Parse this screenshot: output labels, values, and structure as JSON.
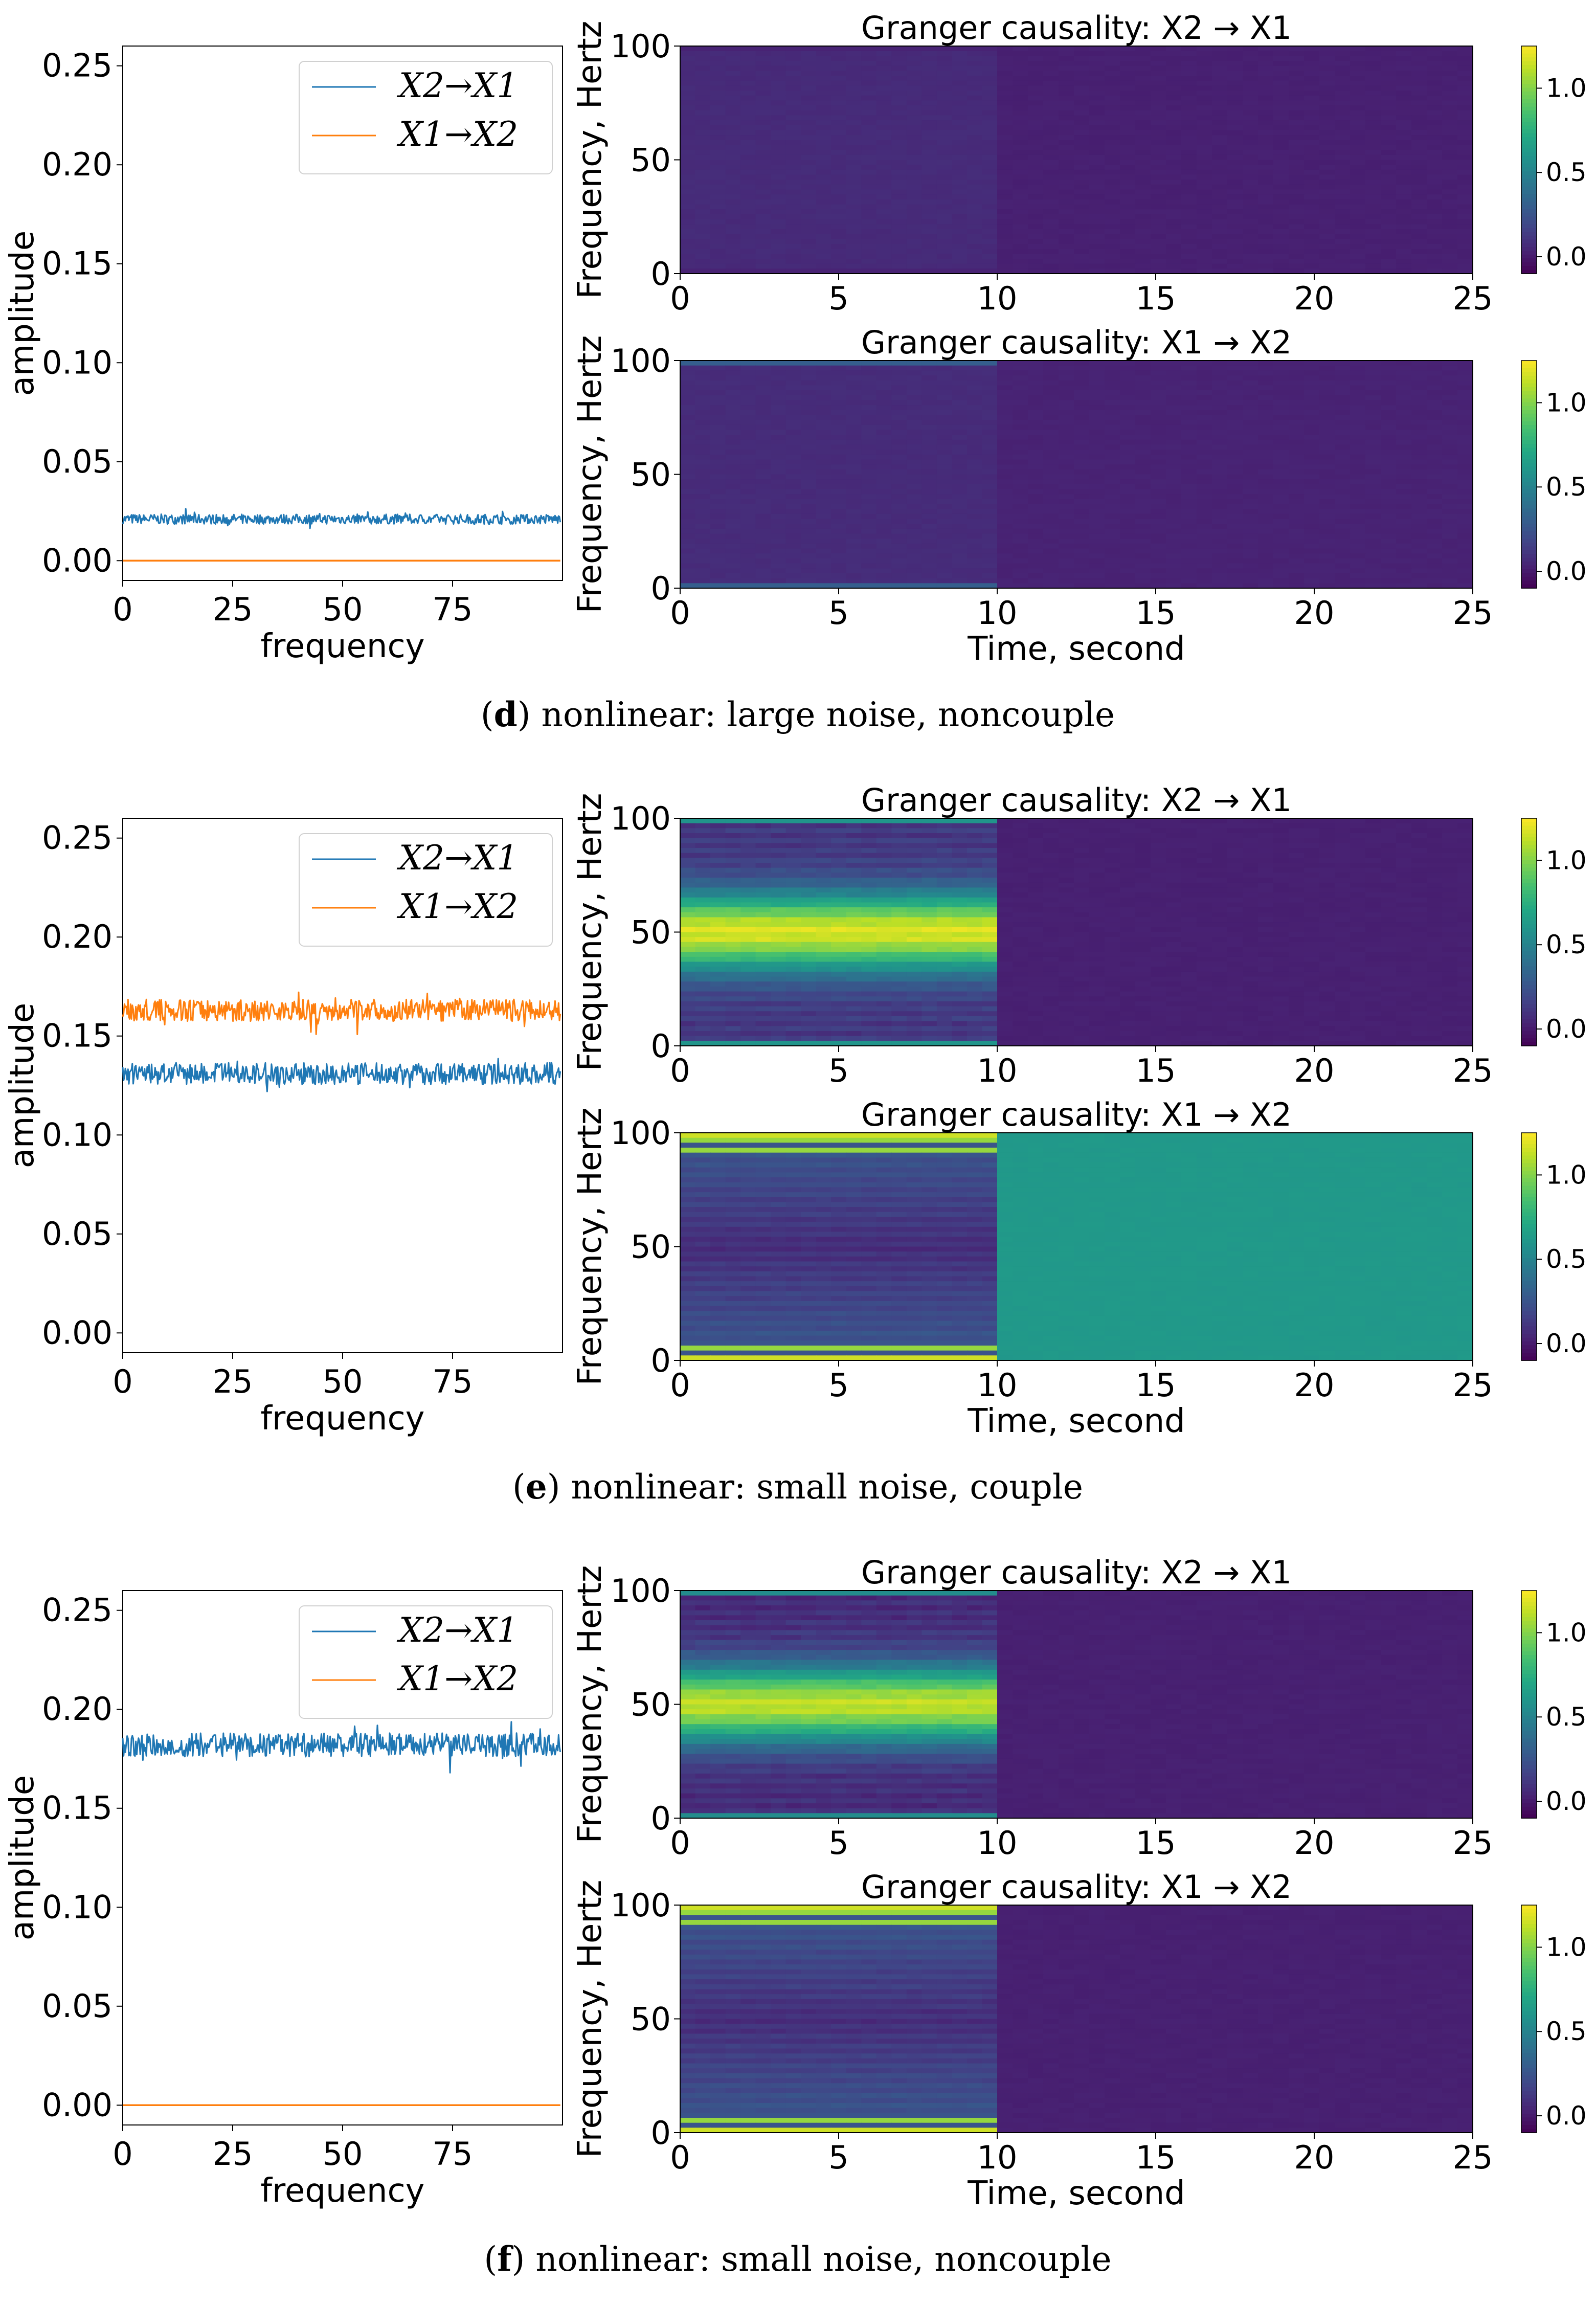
{
  "chart_data": [
    {
      "panel": "d",
      "caption": {
        "label": "d",
        "text": "nonlinear: large noise, noncouple"
      },
      "line_chart": {
        "type": "line",
        "xlabel": "frequency",
        "ylabel": "amplitude",
        "xlim": [
          0,
          100
        ],
        "ylim": [
          -0.01,
          0.26
        ],
        "xticks": [
          "0",
          "25",
          "50",
          "75"
        ],
        "yticks": [
          "0.00",
          "0.05",
          "0.10",
          "0.15",
          "0.20",
          "0.25"
        ],
        "series": [
          {
            "name": "X2→X1",
            "color": "#1f77b4",
            "mean": 0.021,
            "noise": 0.0025
          },
          {
            "name": "X1→X2",
            "color": "#ff7f0e",
            "mean": 0.0,
            "noise": 0.0
          }
        ],
        "legend": "upper-right"
      },
      "heatmaps": [
        {
          "type": "heatmap",
          "title": "Granger causality: X2 → X1",
          "xlabel": "",
          "ylabel": "Frequency, Hertz",
          "xlim": [
            0,
            25
          ],
          "ylim": [
            0,
            100
          ],
          "xticks": [
            "0",
            "5",
            "10",
            "15",
            "20",
            "25"
          ],
          "yticks": [
            "0",
            "50",
            "100"
          ],
          "colorbar": {
            "min": -0.1,
            "max": 1.25,
            "ticks": [
              "0.0",
              "0.5",
              "1.0"
            ]
          },
          "regions": [
            {
              "t": [
                0,
                10
              ],
              "pattern": "hump",
              "edge": 0.03,
              "peak": 0.07,
              "center": 0.06
            },
            {
              "t": [
                10,
                25
              ],
              "pattern": "flat",
              "value": 0.02
            }
          ]
        },
        {
          "type": "heatmap",
          "title": "Granger causality: X1 → X2",
          "xlabel": "Time, second",
          "ylabel": "Frequency, Hertz",
          "xlim": [
            0,
            25
          ],
          "ylim": [
            0,
            100
          ],
          "xticks": [
            "0",
            "5",
            "10",
            "15",
            "20",
            "25"
          ],
          "yticks": [
            "0",
            "50",
            "100"
          ],
          "colorbar": {
            "min": -0.1,
            "max": 1.25,
            "ticks": [
              "0.0",
              "0.5",
              "1.0"
            ]
          },
          "regions": [
            {
              "t": [
                0,
                10
              ],
              "pattern": "hump",
              "edge": 0.3,
              "peak": 0.06,
              "center": 0.07
            },
            {
              "t": [
                10,
                25
              ],
              "pattern": "flat",
              "value": 0.03
            }
          ]
        }
      ]
    },
    {
      "panel": "e",
      "caption": {
        "label": "e",
        "text": "nonlinear: small noise, couple"
      },
      "line_chart": {
        "type": "line",
        "xlabel": "frequency",
        "ylabel": "amplitude",
        "xlim": [
          0,
          100
        ],
        "ylim": [
          -0.01,
          0.26
        ],
        "xticks": [
          "0",
          "25",
          "50",
          "75"
        ],
        "yticks": [
          "0.00",
          "0.05",
          "0.10",
          "0.15",
          "0.20",
          "0.25"
        ],
        "series": [
          {
            "name": "X2→X1",
            "color": "#1f77b4",
            "mean": 0.131,
            "noise": 0.0055
          },
          {
            "name": "X1→X2",
            "color": "#ff7f0e",
            "mean": 0.163,
            "noise": 0.0055
          }
        ],
        "legend": "upper-right"
      },
      "heatmaps": [
        {
          "type": "heatmap",
          "title": "Granger causality: X2 → X1",
          "xlabel": "",
          "ylabel": "Frequency, Hertz",
          "xlim": [
            0,
            25
          ],
          "ylim": [
            0,
            100
          ],
          "xticks": [
            "0",
            "5",
            "10",
            "15",
            "20",
            "25"
          ],
          "yticks": [
            "0",
            "50",
            "100"
          ],
          "colorbar": {
            "min": -0.1,
            "max": 1.25,
            "ticks": [
              "0.0",
              "0.5",
              "1.0"
            ]
          },
          "regions": [
            {
              "t": [
                0,
                10
              ],
              "pattern": "peak-center",
              "edge": 0.6,
              "peak": 1.2,
              "base": 0.15
            },
            {
              "t": [
                10,
                25
              ],
              "pattern": "flat",
              "value": 0.02
            }
          ]
        },
        {
          "type": "heatmap",
          "title": "Granger causality: X1 → X2",
          "xlabel": "Time, second",
          "ylabel": "Frequency, Hertz",
          "xlim": [
            0,
            25
          ],
          "ylim": [
            0,
            100
          ],
          "xticks": [
            "0",
            "5",
            "10",
            "15",
            "20",
            "25"
          ],
          "yticks": [
            "0",
            "50",
            "100"
          ],
          "colorbar": {
            "min": -0.1,
            "max": 1.25,
            "ticks": [
              "0.0",
              "0.5",
              "1.0"
            ]
          },
          "regions": [
            {
              "t": [
                0,
                10
              ],
              "pattern": "stripes-edge",
              "edge": 1.15,
              "peak": 0.06,
              "base": 0.1
            },
            {
              "t": [
                10,
                25
              ],
              "pattern": "flat",
              "value": 0.62
            }
          ]
        }
      ]
    },
    {
      "panel": "f",
      "caption": {
        "label": "f",
        "text": "nonlinear: small noise, noncouple"
      },
      "line_chart": {
        "type": "line",
        "xlabel": "frequency",
        "ylabel": "amplitude",
        "xlim": [
          0,
          100
        ],
        "ylim": [
          -0.01,
          0.26
        ],
        "xticks": [
          "0",
          "25",
          "50",
          "75"
        ],
        "yticks": [
          "0.00",
          "0.05",
          "0.10",
          "0.15",
          "0.20",
          "0.25"
        ],
        "series": [
          {
            "name": "X2→X1",
            "color": "#1f77b4",
            "mean": 0.182,
            "noise": 0.006
          },
          {
            "name": "X1→X2",
            "color": "#ff7f0e",
            "mean": 0.0,
            "noise": 0.0
          }
        ],
        "legend": "upper-right"
      },
      "heatmaps": [
        {
          "type": "heatmap",
          "title": "Granger causality: X2 → X1",
          "xlabel": "",
          "ylabel": "Frequency, Hertz",
          "xlim": [
            0,
            25
          ],
          "ylim": [
            0,
            100
          ],
          "xticks": [
            "0",
            "5",
            "10",
            "15",
            "20",
            "25"
          ],
          "yticks": [
            "0",
            "50",
            "100"
          ],
          "colorbar": {
            "min": -0.1,
            "max": 1.25,
            "ticks": [
              "0.0",
              "0.5",
              "1.0"
            ]
          },
          "regions": [
            {
              "t": [
                0,
                10
              ],
              "pattern": "peak-center",
              "edge": 0.55,
              "peak": 1.15,
              "base": 0.1
            },
            {
              "t": [
                10,
                25
              ],
              "pattern": "flat",
              "value": 0.02
            }
          ]
        },
        {
          "type": "heatmap",
          "title": "Granger causality: X1 → X2",
          "xlabel": "Time, second",
          "ylabel": "Frequency, Hertz",
          "xlim": [
            0,
            25
          ],
          "ylim": [
            0,
            100
          ],
          "xticks": [
            "0",
            "5",
            "10",
            "15",
            "20",
            "25"
          ],
          "yticks": [
            "0",
            "50",
            "100"
          ],
          "colorbar": {
            "min": -0.1,
            "max": 1.25,
            "ticks": [
              "0.0",
              "0.5",
              "1.0"
            ]
          },
          "regions": [
            {
              "t": [
                0,
                10
              ],
              "pattern": "stripes-edge",
              "edge": 1.15,
              "peak": 0.05,
              "base": 0.1
            },
            {
              "t": [
                10,
                25
              ],
              "pattern": "flat",
              "value": 0.02
            }
          ]
        }
      ]
    }
  ]
}
